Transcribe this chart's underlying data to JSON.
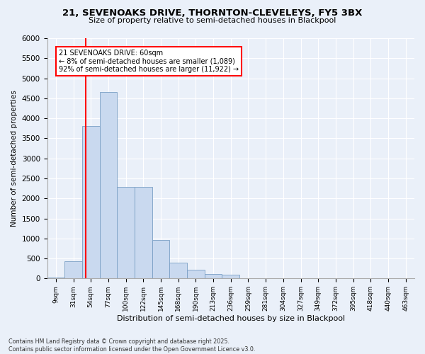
{
  "title1": "21, SEVENOAKS DRIVE, THORNTON-CLEVELEYS, FY5 3BX",
  "title2": "Size of property relative to semi-detached houses in Blackpool",
  "xlabel": "Distribution of semi-detached houses by size in Blackpool",
  "ylabel": "Number of semi-detached properties",
  "categories": [
    "9sqm",
    "31sqm",
    "54sqm",
    "77sqm",
    "100sqm",
    "122sqm",
    "145sqm",
    "168sqm",
    "190sqm",
    "213sqm",
    "236sqm",
    "259sqm",
    "281sqm",
    "304sqm",
    "327sqm",
    "349sqm",
    "372sqm",
    "395sqm",
    "418sqm",
    "440sqm",
    "463sqm"
  ],
  "values": [
    30,
    430,
    3800,
    4650,
    2280,
    2280,
    960,
    400,
    210,
    110,
    100,
    0,
    0,
    0,
    0,
    0,
    0,
    0,
    0,
    0,
    0
  ],
  "bar_color": "#c9d9ef",
  "bar_edge_color": "#7a9fc5",
  "vline_color": "red",
  "vline_pos": 1.72,
  "annotation_text": "21 SEVENOAKS DRIVE: 60sqm\n← 8% of semi-detached houses are smaller (1,089)\n92% of semi-detached houses are larger (11,922) →",
  "annotation_box_color": "white",
  "annotation_box_edge": "red",
  "bg_color": "#eaf0f9",
  "footnote": "Contains HM Land Registry data © Crown copyright and database right 2025.\nContains public sector information licensed under the Open Government Licence v3.0.",
  "ylim": [
    0,
    6000
  ],
  "yticks": [
    0,
    500,
    1000,
    1500,
    2000,
    2500,
    3000,
    3500,
    4000,
    4500,
    5000,
    5500,
    6000
  ]
}
